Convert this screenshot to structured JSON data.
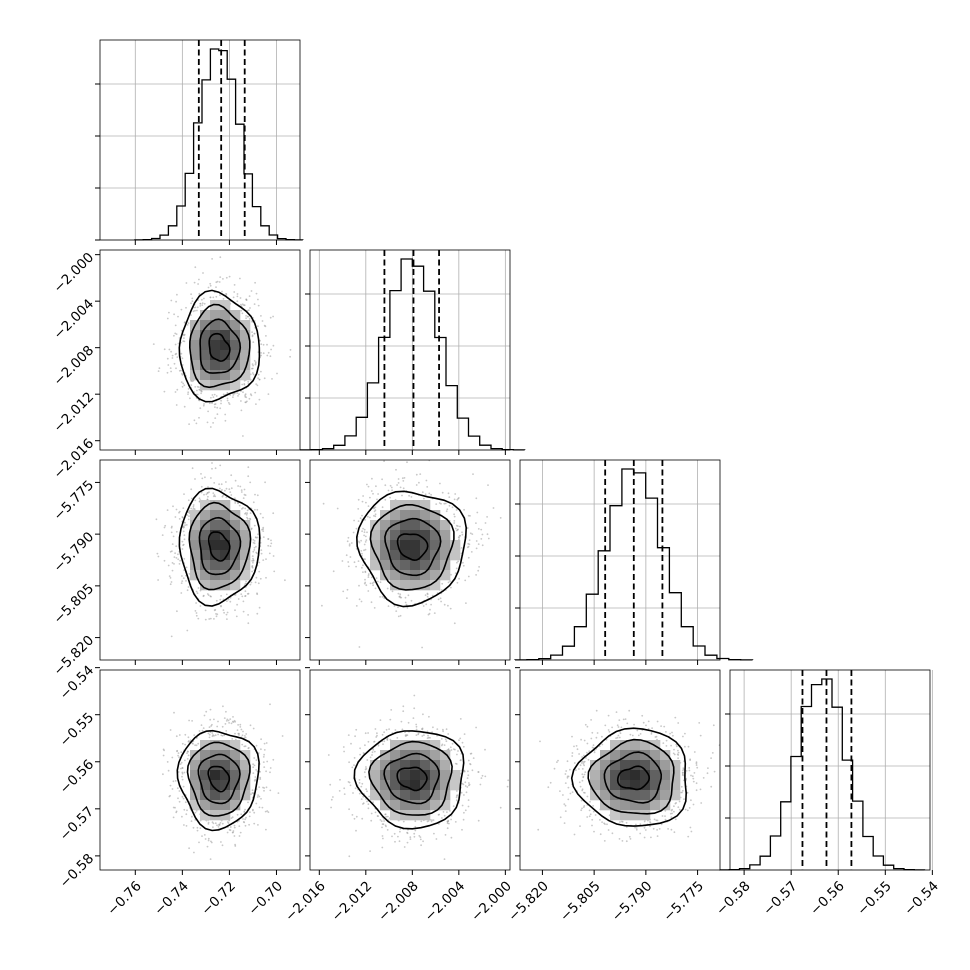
{
  "chart_data": {
    "type": "corner",
    "parameters": [
      {
        "range": [
          -0.775,
          -0.69
        ],
        "ticks": [
          -0.76,
          -0.74,
          -0.72,
          -0.7
        ],
        "tick_labels": [
          "−0.76",
          "−0.74",
          "−0.72",
          "−0.70"
        ],
        "quantiles": [
          -0.733,
          -0.7235,
          -0.7135
        ],
        "mode": -0.7245,
        "sigma": 0.0085,
        "hist_max": 1.0
      },
      {
        "range": [
          -2.0168,
          -1.9996
        ],
        "ticks": [
          -2.016,
          -2.012,
          -2.008,
          -2.004,
          -2.0
        ],
        "tick_labels": [
          "−2.016",
          "−2.012",
          "−2.008",
          "−2.004",
          "−2.000"
        ],
        "quantiles": [
          -2.0104,
          -2.0079,
          -2.0057
        ],
        "mode": -2.008,
        "sigma": 0.0023,
        "hist_max": 1.0
      },
      {
        "range": [
          -5.8265,
          -5.7685
        ],
        "ticks": [
          -5.82,
          -5.805,
          -5.79,
          -5.775
        ],
        "tick_labels": [
          "−5.820",
          "−5.805",
          "−5.790",
          "−5.775"
        ],
        "quantiles": [
          -5.8018,
          -5.7935,
          -5.7852
        ],
        "mode": -5.7935,
        "sigma": 0.0082,
        "hist_max": 1.0
      },
      {
        "range": [
          -0.583,
          -0.5405
        ],
        "ticks": [
          -0.58,
          -0.57,
          -0.56,
          -0.55,
          -0.54
        ],
        "tick_labels": [
          "−0.58",
          "−0.57",
          "−0.56",
          "−0.55",
          "−0.54"
        ],
        "quantiles": [
          -0.5676,
          -0.5625,
          -0.5572
        ],
        "mode": -0.5635,
        "sigma": 0.0052,
        "hist_max": 1.0
      }
    ],
    "y_axis_ticks": {
      "1": {
        "ticks": [
          -2.0,
          -2.004,
          -2.008,
          -2.012,
          -2.016
        ],
        "tick_labels": [
          "−2.000",
          "−2.004",
          "−2.008",
          "−2.012",
          "−2.016"
        ]
      },
      "2": {
        "ticks": [
          -5.775,
          -5.79,
          -5.805,
          -5.82
        ],
        "tick_labels": [
          "−5.775",
          "−5.790",
          "−5.805",
          "−5.820"
        ]
      },
      "3": {
        "ticks": [
          -0.54,
          -0.55,
          -0.56,
          -0.57,
          -0.58
        ],
        "tick_labels": [
          "−0.54",
          "−0.55",
          "−0.56",
          "−0.57",
          "−0.58"
        ]
      }
    },
    "diag_y_ticks_fraction": [
      0.0,
      0.26,
      0.52,
      0.78
    ],
    "bins": 20,
    "correlation": 0.0,
    "grid": true,
    "colors": {
      "contour": "#000000",
      "points": "#9a9a9a",
      "frame": "#000000",
      "grid": "#b0b0b0"
    }
  }
}
